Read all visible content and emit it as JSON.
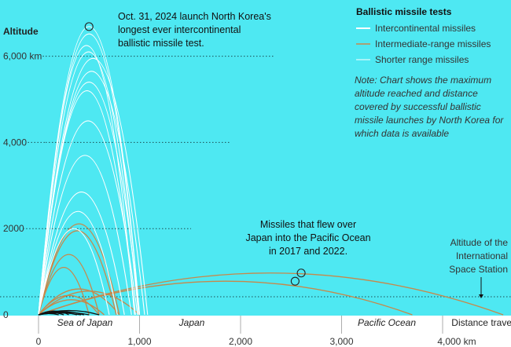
{
  "colors": {
    "background": "#4ee8f2",
    "icbm": "#ffffff",
    "irbm": "#c7884a",
    "srbm": "#111111",
    "bottom_band": "#ffffff",
    "grid": "#1a4d52"
  },
  "chart_data": {
    "type": "line",
    "title": "",
    "ylabel": "Altitude",
    "xlabel": "Distance travelled",
    "xlim": [
      0,
      4700
    ],
    "ylim": [
      0,
      6700
    ],
    "xticks": [
      {
        "value": 0,
        "label": "0"
      },
      {
        "value": 1000,
        "label": "1,000"
      },
      {
        "value": 2000,
        "label": "2,000"
      },
      {
        "value": 3000,
        "label": "3,000"
      },
      {
        "value": 4000,
        "label": "4,000 km"
      }
    ],
    "yticks": [
      {
        "value": 0,
        "label": "0"
      },
      {
        "value": 2000,
        "label": "2000"
      },
      {
        "value": 4000,
        "label": "4,000"
      },
      {
        "value": 6000,
        "label": "6,000 km"
      }
    ],
    "regions": [
      "Sea of Japan",
      "Japan",
      "Pacific Ocean"
    ],
    "iss_altitude": 420,
    "iss_label": [
      "Altitude of the",
      "International",
      "Space Station"
    ],
    "legend": {
      "title": "Ballistic missile tests",
      "placement": "top-right",
      "items": [
        "Intercontinental missiles",
        "Intermediate-range missiles",
        "Shorter range missiles"
      ]
    },
    "note": [
      "Note: Chart shows the maximum",
      "altitude reached and distance",
      "covered by successful ballistic",
      "missile launches by North Korea for",
      "which data is available"
    ],
    "annotations": {
      "record": [
        "Oct. 31, 2024 launch North Korea's",
        "longest ever intercontinental",
        "ballistic missile test."
      ],
      "japan_overflight": [
        "Missiles that flew over",
        "Japan into the Pacific Ocean",
        "in 2017 and 2022."
      ]
    },
    "series": [
      {
        "name": "Intercontinental missiles",
        "arcs": [
          {
            "distance": 1001,
            "apogee": 6687
          },
          {
            "distance": 950,
            "apogee": 6248
          },
          {
            "distance": 1000,
            "apogee": 6518
          },
          {
            "distance": 990,
            "apogee": 6100
          },
          {
            "distance": 1080,
            "apogee": 5950
          },
          {
            "distance": 1050,
            "apogee": 5650
          },
          {
            "distance": 1000,
            "apogee": 5400
          },
          {
            "distance": 960,
            "apogee": 5200
          },
          {
            "distance": 980,
            "apogee": 4500
          },
          {
            "distance": 920,
            "apogee": 3700
          },
          {
            "distance": 850,
            "apogee": 2850
          },
          {
            "distance": 780,
            "apogee": 2400
          },
          {
            "distance": 700,
            "apogee": 2000
          }
        ]
      },
      {
        "name": "Intermediate-range missiles",
        "arcs": [
          {
            "distance": 4600,
            "apogee": 970
          },
          {
            "distance": 3700,
            "apogee": 780
          },
          {
            "distance": 800,
            "apogee": 2111
          },
          {
            "distance": 770,
            "apogee": 1950
          },
          {
            "distance": 600,
            "apogee": 1400
          },
          {
            "distance": 500,
            "apogee": 1100
          },
          {
            "distance": 800,
            "apogee": 600
          },
          {
            "distance": 1000,
            "apogee": 550
          },
          {
            "distance": 600,
            "apogee": 450
          },
          {
            "distance": 650,
            "apogee": 350
          }
        ]
      },
      {
        "name": "Shorter range missiles",
        "arcs": [
          {
            "distance": 600,
            "apogee": 100
          },
          {
            "distance": 450,
            "apogee": 80
          },
          {
            "distance": 380,
            "apogee": 60
          },
          {
            "distance": 300,
            "apogee": 90
          },
          {
            "distance": 250,
            "apogee": 50
          },
          {
            "distance": 420,
            "apogee": 40
          },
          {
            "distance": 200,
            "apogee": 30
          },
          {
            "distance": 500,
            "apogee": 60
          }
        ]
      }
    ],
    "highlight_points": [
      {
        "distance": 500,
        "apogee": 6687
      },
      {
        "distance": 2600,
        "apogee": 970
      },
      {
        "distance": 2540,
        "apogee": 780
      }
    ]
  }
}
